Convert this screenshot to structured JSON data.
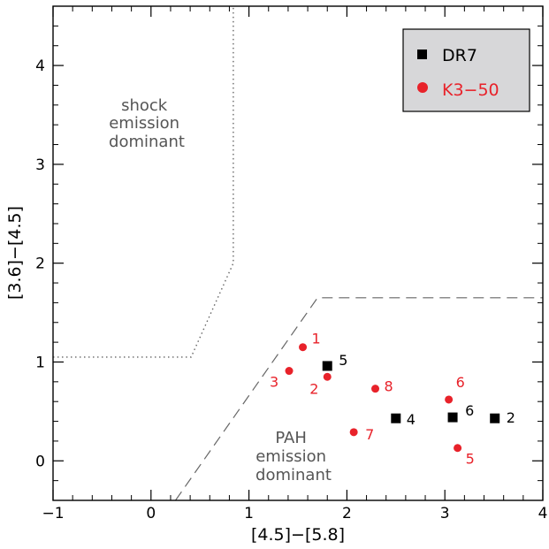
{
  "chart_data": {
    "type": "scatter",
    "xlabel": "[4.5]−[5.8]",
    "ylabel": "[3.6]−[4.5]",
    "xlim": [
      -1,
      4
    ],
    "ylim": [
      -0.4,
      4.6
    ],
    "x_ticks": [
      "−1",
      "0",
      "1",
      "2",
      "3",
      "4"
    ],
    "y_ticks": [
      "0",
      "1",
      "2",
      "3",
      "4"
    ],
    "legend_position": "top-right",
    "series": [
      {
        "name": "DR7",
        "color": "#000000",
        "marker": "square",
        "points": [
          {
            "x": 3.51,
            "y": 0.43,
            "label": "2"
          },
          {
            "x": 2.5,
            "y": 0.43,
            "label": "4"
          },
          {
            "x": 1.8,
            "y": 0.96,
            "label": "5"
          },
          {
            "x": 3.08,
            "y": 0.44,
            "label": "6"
          }
        ]
      },
      {
        "name": "K3−50",
        "color": "#e8222a",
        "marker": "circle",
        "points": [
          {
            "x": 1.55,
            "y": 1.15,
            "label": "1"
          },
          {
            "x": 1.8,
            "y": 0.85,
            "label": "2"
          },
          {
            "x": 1.41,
            "y": 0.91,
            "label": "3"
          },
          {
            "x": 3.13,
            "y": 0.13,
            "label": "5"
          },
          {
            "x": 3.04,
            "y": 0.62,
            "label": "6"
          },
          {
            "x": 2.07,
            "y": 0.29,
            "label": "7"
          },
          {
            "x": 2.29,
            "y": 0.73,
            "label": "8"
          }
        ]
      }
    ],
    "shock_boundary": [
      {
        "x": -1.0,
        "y": 1.05
      },
      {
        "x": 0.41,
        "y": 1.05
      },
      {
        "x": 0.84,
        "y": 2.0
      },
      {
        "x": 0.84,
        "y": 4.6
      }
    ],
    "pah_boundary": [
      {
        "x": 0.25,
        "y": -0.4
      },
      {
        "x": 1.7,
        "y": 1.65
      },
      {
        "x": 4.0,
        "y": 1.65
      }
    ],
    "annotations": {
      "shock": [
        "shock",
        "emission",
        "dominant"
      ],
      "pah": [
        "PAH",
        "emission",
        "dominant"
      ]
    }
  }
}
